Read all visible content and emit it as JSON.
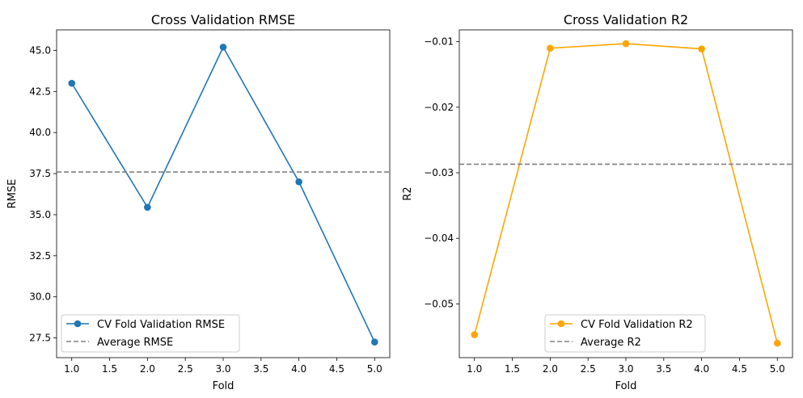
{
  "chart_data": [
    {
      "type": "line",
      "title": "Cross Validation RMSE",
      "xlabel": "Fold",
      "ylabel": "RMSE",
      "x": [
        1,
        2,
        3,
        4,
        5
      ],
      "xlim": [
        0.8,
        5.2
      ],
      "ylim": [
        26.3,
        46.25
      ],
      "xticks": [
        "1.0",
        "1.5",
        "2.0",
        "2.5",
        "3.0",
        "3.5",
        "4.0",
        "4.5",
        "5.0"
      ],
      "yticks": [
        "27.5",
        "30.0",
        "32.5",
        "35.0",
        "37.5",
        "40.0",
        "42.5",
        "45.0"
      ],
      "series": [
        {
          "name": "CV Fold Validation RMSE",
          "values": [
            43.0,
            35.45,
            45.2,
            37.0,
            27.25
          ],
          "color": "#1f77b4",
          "style": "solid",
          "marker": "circle"
        }
      ],
      "hline": {
        "name": "Average RMSE",
        "value": 37.6,
        "color": "#808080",
        "style": "dashed"
      },
      "legend": "lower-left",
      "grid": false
    },
    {
      "type": "line",
      "title": "Cross Validation R2",
      "xlabel": "Fold",
      "ylabel": "R2",
      "x": [
        1,
        2,
        3,
        4,
        5
      ],
      "xlim": [
        0.8,
        5.2
      ],
      "ylim": [
        -0.0582,
        -0.0082
      ],
      "xticks": [
        "1.0",
        "1.5",
        "2.0",
        "2.5",
        "3.0",
        "3.5",
        "4.0",
        "4.5",
        "5.0"
      ],
      "yticks": [
        "−0.05",
        "−0.04",
        "−0.03",
        "−0.02",
        "−0.01"
      ],
      "series": [
        {
          "name": "CV Fold Validation R2",
          "values": [
            -0.0547,
            -0.011,
            -0.0103,
            -0.0111,
            -0.056
          ],
          "color": "#ffa500",
          "style": "solid",
          "marker": "circle"
        }
      ],
      "hline": {
        "name": "Average R2",
        "value": -0.0287,
        "color": "#808080",
        "style": "dashed"
      },
      "legend": "lower-center",
      "grid": false
    }
  ]
}
